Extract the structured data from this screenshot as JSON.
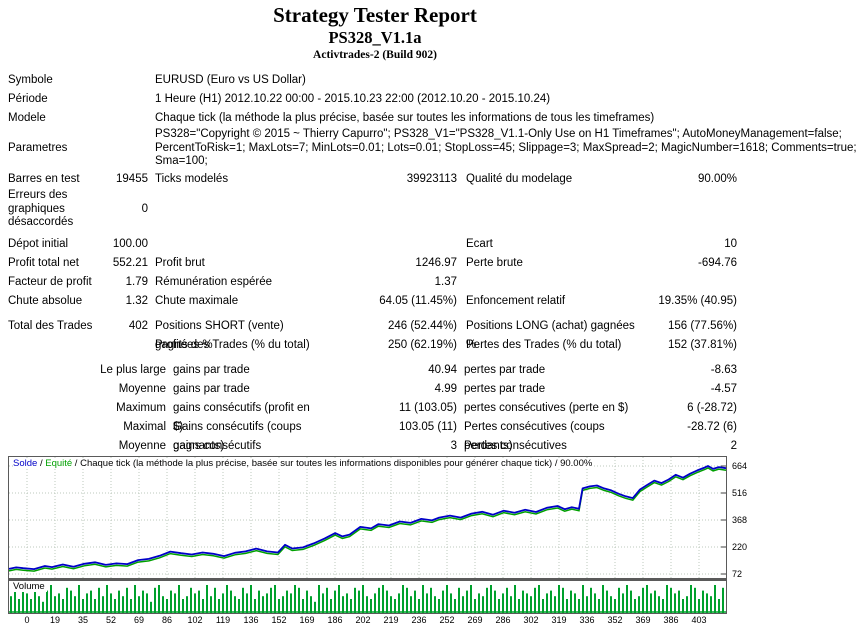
{
  "header": {
    "title": "Strategy Tester Report",
    "subtitle": "PS328_V1.1a",
    "build": "Activtrades-2 (Build 902)"
  },
  "report": {
    "symbole_label": "Symbole",
    "symbole": "EURUSD (Euro vs US Dollar)",
    "periode_label": "Période",
    "periode": "1 Heure (H1) 2012.10.22 00:00 - 2015.10.23 22:00 (2012.10.20 - 2015.10.24)",
    "modele_label": "Modele",
    "modele": "Chaque tick (la méthode la plus précise, basée sur toutes les informations de tous les timeframes)",
    "parametres_label": "Parametres",
    "parametres_line1": "PS328=\"Copyright © 2015 ~ Thierry Capurro\"; PS328_V1=\"PS328_V1.1-Only Use on H1 Timeframes\"; AutoMoneyManagement=false;",
    "parametres_line2": "PercentToRisk=1; MaxLots=7; MinLots=0.01; Lots=0.01; StopLoss=45; Slippage=3; MaxSpread=2; MagicNumber=1618; Comments=true;",
    "parametres_line3": "Sma=100;",
    "barres_label": "Barres en test",
    "barres": "19455",
    "ticks_label": "Ticks modelés",
    "ticks": "39923113",
    "qualite_label": "Qualité du modelage",
    "qualite": "90.00%",
    "erreurs_label": "Erreurs des graphiques désaccordés",
    "erreurs": "0",
    "depot_label": "Dépot initial",
    "depot": "100.00",
    "ecart_label": "Ecart",
    "ecart": "10",
    "profit_net_label": "Profit total net",
    "profit_net": "552.21",
    "profit_brut_label": "Profit brut",
    "profit_brut": "1246.97",
    "perte_brute_label": "Perte brute",
    "perte_brute": "-694.76",
    "facteur_label": "Facteur de profit",
    "facteur": "1.79",
    "remuneration_label": "Rémunération espérée",
    "remuneration": "1.37",
    "chute_abs_label": "Chute absolue",
    "chute_abs": "1.32",
    "chute_max_label": "Chute maximale",
    "chute_max": "64.05 (11.45%)",
    "enfoncement_label": "Enfoncement relatif",
    "enfoncement": "19.35% (40.95)",
    "trades_label": "Total des Trades",
    "trades": "402",
    "short_label": "Positions SHORT (vente) gagnées %",
    "short": "246 (52.44%)",
    "long_label": "Positions LONG (achat) gagnées %",
    "long": "156 (77.56%)",
    "profits_label": "Profits des Trades (% du total)",
    "profits": "250 (62.19%)",
    "pertes_label": "Pertes des Trades (% du total)",
    "pertes": "152 (37.81%)",
    "large_label": "Le plus large",
    "large_gain_label": "gains par trade",
    "large_gain": "40.94",
    "large_perte_label": "pertes par trade",
    "large_perte": "-8.63",
    "moy_label": "Moyenne",
    "moy_gain_label": "gains par trade",
    "moy_gain": "4.99",
    "moy_perte_label": "pertes par trade",
    "moy_perte": "-4.57",
    "max_label": "Maximum",
    "max_gain_label": "gains consécutifs (profit en $)",
    "max_gain": "11 (103.05)",
    "max_perte_label": "pertes consécutives (perte en $)",
    "max_perte": "6 (-28.72)",
    "maximal_label": "Maximal",
    "maximal_gain_label": "Gains consécutifs (coups gagnants)",
    "maximal_gain": "103.05 (11)",
    "maximal_perte_label": "Pertes consécutives (coups perdants)",
    "maximal_perte": "-28.72 (6)",
    "moy2_label": "Moyenne",
    "moy2_gain_label": "gains consécutifs",
    "moy2_gain": "3",
    "moy2_perte_label": "Pertes consécutives",
    "moy2_perte": "2"
  },
  "chart": {
    "legend_balance": "Solde",
    "legend_equity": "Equité",
    "sep": " / ",
    "legend_rest": "Chaque tick (la méthode la plus précise, basée sur toutes les informations disponibles pour générer chaque tick) / 90.00%",
    "volume_label": "Volume",
    "colors": {
      "balance": "#0000c8",
      "equity": "#00a000",
      "volume": "#00a02c",
      "grid": "#bcc8bc",
      "border": "#5a5a5a",
      "tick": "#404040"
    }
  },
  "chart_data": {
    "type": "line",
    "title": "Solde / Equité / Chaque tick (la méthode la plus précise, basée sur toutes les informations disponibles pour générer chaque tick) / 90.00%",
    "ylabel": "Solde",
    "legend": [
      "Solde",
      "Equité"
    ],
    "y_ticks": [
      664,
      516,
      368,
      220,
      72
    ],
    "ylim": [
      35,
      720
    ],
    "x_ticks": [
      0,
      19,
      35,
      52,
      69,
      86,
      102,
      119,
      136,
      152,
      169,
      186,
      202,
      219,
      236,
      252,
      269,
      286,
      302,
      319,
      336,
      352,
      369,
      386,
      403
    ],
    "balance": [
      [
        0,
        100
      ],
      [
        0.01,
        108
      ],
      [
        0.02,
        104
      ],
      [
        0.035,
        99
      ],
      [
        0.05,
        116
      ],
      [
        0.06,
        110
      ],
      [
        0.075,
        124
      ],
      [
        0.09,
        112
      ],
      [
        0.105,
        128
      ],
      [
        0.12,
        136
      ],
      [
        0.135,
        122
      ],
      [
        0.15,
        130
      ],
      [
        0.165,
        126
      ],
      [
        0.18,
        148
      ],
      [
        0.195,
        155
      ],
      [
        0.21,
        172
      ],
      [
        0.225,
        195
      ],
      [
        0.24,
        186
      ],
      [
        0.255,
        179
      ],
      [
        0.27,
        190
      ],
      [
        0.285,
        183
      ],
      [
        0.3,
        170
      ],
      [
        0.315,
        188
      ],
      [
        0.33,
        196
      ],
      [
        0.345,
        211
      ],
      [
        0.36,
        196
      ],
      [
        0.375,
        190
      ],
      [
        0.385,
        232
      ],
      [
        0.395,
        212
      ],
      [
        0.41,
        218
      ],
      [
        0.425,
        240
      ],
      [
        0.44,
        266
      ],
      [
        0.455,
        296
      ],
      [
        0.465,
        278
      ],
      [
        0.475,
        288
      ],
      [
        0.49,
        330
      ],
      [
        0.505,
        322
      ],
      [
        0.515,
        345
      ],
      [
        0.53,
        338
      ],
      [
        0.545,
        360
      ],
      [
        0.56,
        352
      ],
      [
        0.575,
        374
      ],
      [
        0.59,
        366
      ],
      [
        0.6,
        381
      ],
      [
        0.615,
        392
      ],
      [
        0.63,
        381
      ],
      [
        0.645,
        403
      ],
      [
        0.66,
        413
      ],
      [
        0.675,
        397
      ],
      [
        0.69,
        419
      ],
      [
        0.705,
        408
      ],
      [
        0.72,
        424
      ],
      [
        0.735,
        412
      ],
      [
        0.75,
        435
      ],
      [
        0.765,
        445
      ],
      [
        0.775,
        427
      ],
      [
        0.785,
        438
      ],
      [
        0.795,
        430
      ],
      [
        0.8,
        541
      ],
      [
        0.81,
        552
      ],
      [
        0.82,
        557
      ],
      [
        0.83,
        541
      ],
      [
        0.84,
        530
      ],
      [
        0.85,
        512
      ],
      [
        0.86,
        498
      ],
      [
        0.87,
        488
      ],
      [
        0.88,
        535
      ],
      [
        0.89,
        560
      ],
      [
        0.9,
        584
      ],
      [
        0.91,
        570
      ],
      [
        0.92,
        590
      ],
      [
        0.93,
        616
      ],
      [
        0.94,
        600
      ],
      [
        0.95,
        622
      ],
      [
        0.96,
        640
      ],
      [
        0.97,
        655
      ],
      [
        0.975,
        664
      ],
      [
        0.982,
        648
      ],
      [
        0.99,
        658
      ],
      [
        1,
        652
      ]
    ],
    "volume_bars": [
      6,
      8,
      5,
      10,
      7,
      5,
      9,
      6,
      4,
      8,
      10,
      6,
      7,
      5,
      9,
      8,
      6,
      10,
      5,
      7,
      8,
      5,
      9,
      6,
      10,
      7,
      5,
      8,
      6,
      9,
      5,
      10,
      6,
      8,
      7,
      4,
      9,
      10,
      6,
      5,
      8,
      7,
      10,
      5,
      6,
      9,
      7,
      8,
      5,
      10,
      6,
      9,
      5,
      7,
      10,
      8,
      6,
      5,
      9,
      7,
      10,
      5,
      8,
      6,
      7,
      9,
      10,
      5,
      6,
      8,
      7,
      10,
      9,
      5,
      8,
      6,
      4,
      10,
      7,
      9,
      5,
      8,
      10,
      6,
      7,
      5,
      9,
      8,
      10,
      6,
      5,
      7,
      9,
      10,
      8,
      6,
      5,
      7,
      10,
      9,
      6,
      8,
      5,
      10,
      7,
      9,
      6,
      5,
      8,
      10,
      7,
      5,
      9,
      6,
      8,
      10,
      5,
      7,
      6,
      9,
      10,
      8,
      5,
      7,
      9,
      6,
      10,
      5,
      8,
      7,
      6,
      9,
      10,
      5,
      7,
      8,
      6,
      10,
      9,
      5,
      8,
      7,
      5,
      10,
      6,
      9,
      7,
      5,
      10,
      8,
      6,
      5,
      9,
      7,
      10,
      8,
      5,
      6,
      9,
      10,
      7,
      8,
      6,
      5,
      10,
      9,
      7,
      8,
      5,
      6,
      10,
      9,
      5,
      8,
      7,
      6,
      10,
      5,
      9,
      8
    ]
  }
}
